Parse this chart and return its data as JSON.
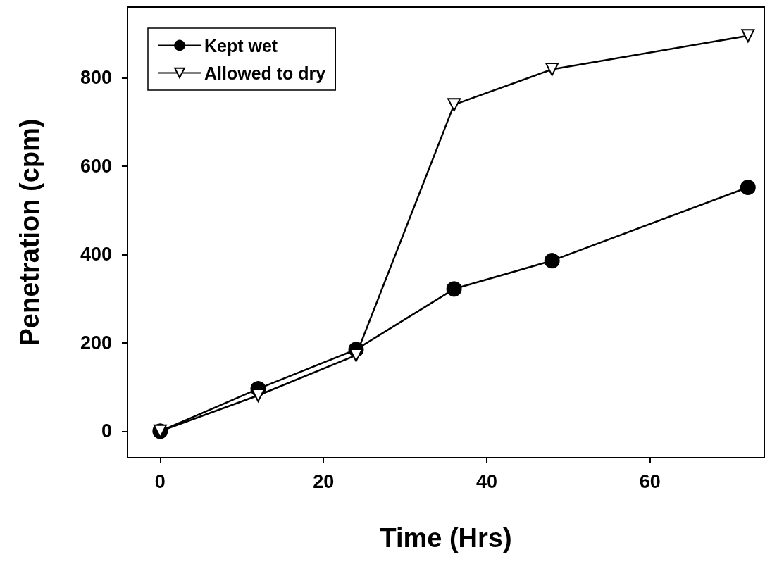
{
  "chart_data": {
    "type": "line",
    "xlabel": "Time (Hrs)",
    "ylabel": "Penetration (cpm)",
    "x": [
      0,
      12,
      24,
      36,
      48,
      72
    ],
    "series": [
      {
        "name": "Kept wet",
        "color": "#000000",
        "marker": "circle",
        "values": [
          0,
          96,
          185,
          322,
          386,
          552
        ]
      },
      {
        "name": "Allowed to dry",
        "color": "#000000",
        "marker": "triangle",
        "values": [
          0,
          81,
          172,
          739,
          819,
          895
        ]
      }
    ],
    "xlim": [
      -4,
      74
    ],
    "xticks": [
      0,
      20,
      40,
      60
    ],
    "ylim": [
      -60,
      960
    ],
    "yticks": [
      0,
      200,
      400,
      600,
      800
    ],
    "legend": "top left",
    "grid": false,
    "line_style": "solid"
  }
}
